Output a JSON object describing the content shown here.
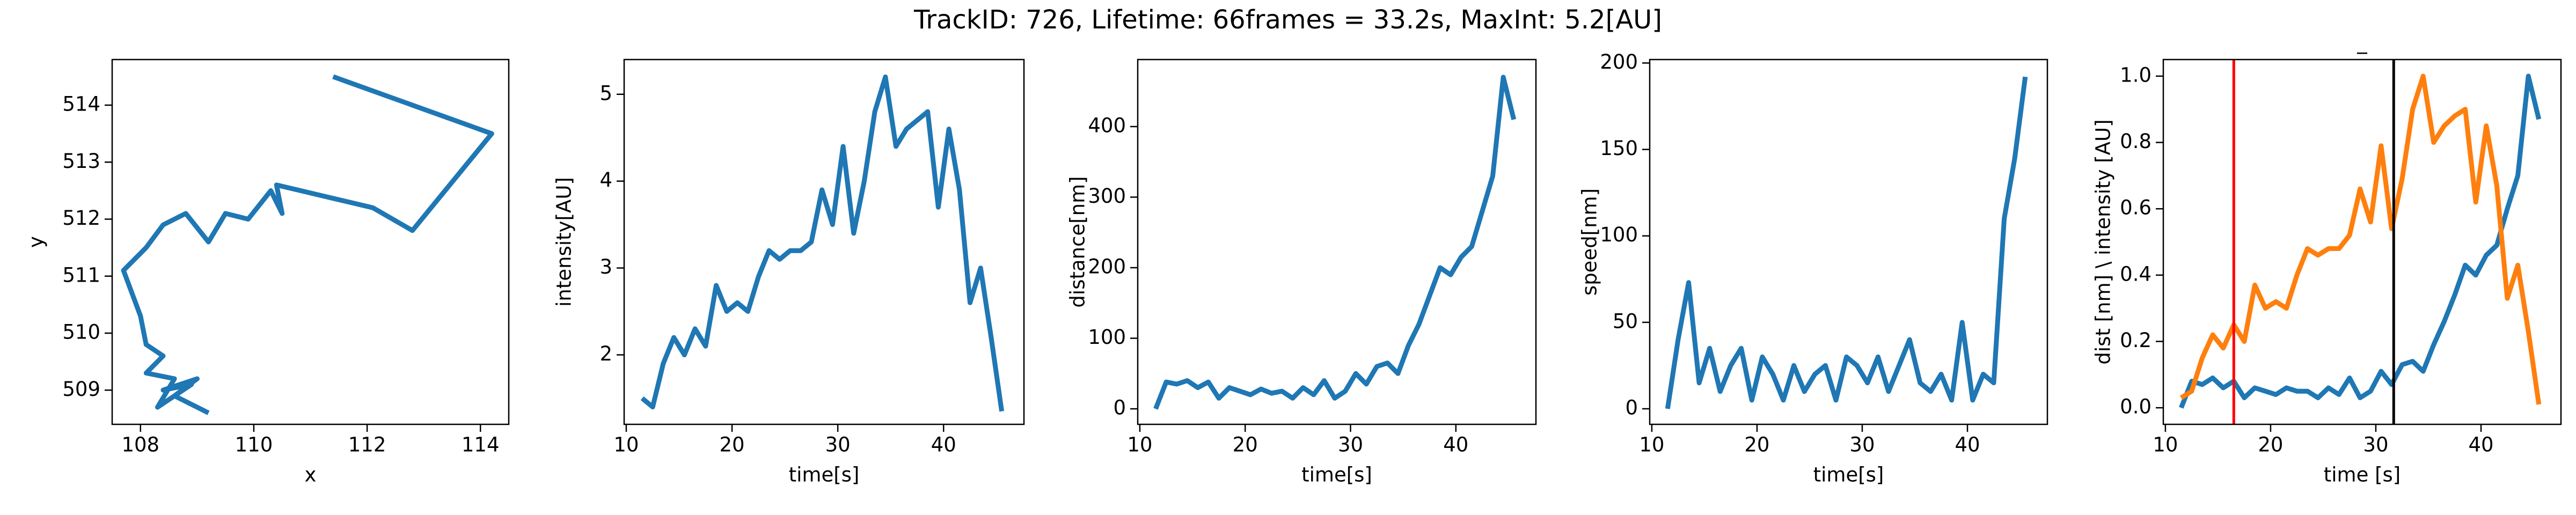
{
  "title": "TrackID: 726, Lifetime: 66frames = 33.2s, MaxInt: 5.2[AU]",
  "chart_data": [
    {
      "type": "line",
      "xlabel": "x",
      "ylabel": "y",
      "color": "#1f77b4",
      "x": [
        111.4,
        114.2,
        112.8,
        112.1,
        110.4,
        110.5,
        110.3,
        109.9,
        109.5,
        109.2,
        108.8,
        108.4,
        108.1,
        108.1,
        107.7,
        108.0,
        108.1,
        108.4,
        108.1,
        108.6,
        108.3,
        108.9,
        108.4,
        109.0,
        108.6,
        109.2
      ],
      "values": [
        514.5,
        513.5,
        511.8,
        512.2,
        512.6,
        512.1,
        512.5,
        512.0,
        512.1,
        511.6,
        512.1,
        511.9,
        511.5,
        511.5,
        511.1,
        510.3,
        509.8,
        509.6,
        509.3,
        509.2,
        508.7,
        509.1,
        509.0,
        509.2,
        508.9,
        508.6
      ],
      "xlim": [
        107.5,
        114.5
      ],
      "ylim": [
        508.4,
        514.8
      ],
      "xticks": [
        108,
        110,
        112,
        114
      ],
      "yticks": [
        509,
        510,
        511,
        512,
        513,
        514
      ]
    },
    {
      "type": "line",
      "xlabel": "time[s]",
      "ylabel": "intensity[AU]",
      "color": "#1f77b4",
      "x": [
        11.5,
        12.5,
        13.5,
        14.5,
        15.5,
        16.5,
        17.5,
        18.5,
        19.5,
        20.5,
        21.5,
        22.5,
        23.5,
        24.5,
        25.5,
        26.5,
        27.5,
        28.5,
        29.5,
        30.5,
        31.5,
        32.5,
        33.5,
        34.5,
        35.5,
        36.5,
        37.5,
        38.5,
        39.5,
        40.5,
        41.5,
        42.5,
        43.5,
        44.5,
        45.5
      ],
      "values": [
        1.5,
        1.4,
        1.9,
        2.2,
        2.0,
        2.3,
        2.1,
        2.8,
        2.5,
        2.6,
        2.5,
        2.9,
        3.2,
        3.1,
        3.2,
        3.2,
        3.3,
        3.9,
        3.5,
        4.4,
        3.4,
        4.0,
        4.8,
        5.2,
        4.4,
        4.6,
        4.7,
        4.8,
        3.7,
        4.6,
        3.9,
        2.6,
        3.0,
        2.2,
        1.35
      ],
      "xlim": [
        9.8,
        47.6
      ],
      "ylim": [
        1.2,
        5.4
      ],
      "xticks": [
        10,
        20,
        30,
        40
      ],
      "yticks": [
        2,
        3,
        4,
        5
      ]
    },
    {
      "type": "line",
      "xlabel": "time[s]",
      "ylabel": "distance[nm]",
      "color": "#1f77b4",
      "x": [
        11.5,
        12.5,
        13.5,
        14.5,
        15.5,
        16.5,
        17.5,
        18.5,
        19.5,
        20.5,
        21.5,
        22.5,
        23.5,
        24.5,
        25.5,
        26.5,
        27.5,
        28.5,
        29.5,
        30.5,
        31.5,
        32.5,
        33.5,
        34.5,
        35.5,
        36.5,
        37.5,
        38.5,
        39.5,
        40.5,
        41.5,
        42.5,
        43.5,
        44.5,
        45.5
      ],
      "values": [
        0,
        38,
        35,
        40,
        30,
        38,
        15,
        30,
        25,
        20,
        28,
        22,
        25,
        15,
        30,
        20,
        40,
        15,
        25,
        50,
        35,
        60,
        65,
        50,
        90,
        120,
        160,
        200,
        190,
        215,
        230,
        280,
        330,
        470,
        410
      ],
      "xlim": [
        9.8,
        47.6
      ],
      "ylim": [
        -22,
        495
      ],
      "xticks": [
        10,
        20,
        30,
        40
      ],
      "yticks": [
        0,
        100,
        200,
        300,
        400
      ]
    },
    {
      "type": "line",
      "xlabel": "time[s]",
      "ylabel": "speed[nm]",
      "color": "#1f77b4",
      "x": [
        11.5,
        12.5,
        13.5,
        14.5,
        15.5,
        16.5,
        17.5,
        18.5,
        19.5,
        20.5,
        21.5,
        22.5,
        23.5,
        24.5,
        25.5,
        26.5,
        27.5,
        28.5,
        29.5,
        30.5,
        31.5,
        32.5,
        33.5,
        34.5,
        35.5,
        36.5,
        37.5,
        38.5,
        39.5,
        40.5,
        41.5,
        42.5,
        43.5,
        44.5,
        45.5
      ],
      "values": [
        0,
        40,
        73,
        15,
        35,
        10,
        25,
        35,
        5,
        30,
        20,
        5,
        25,
        10,
        20,
        25,
        5,
        30,
        25,
        15,
        30,
        10,
        25,
        40,
        15,
        10,
        20,
        5,
        50,
        5,
        20,
        15,
        110,
        145,
        192
      ],
      "xlim": [
        9.8,
        47.6
      ],
      "ylim": [
        -9,
        202
      ],
      "xticks": [
        10,
        20,
        30,
        40
      ],
      "yticks": [
        0,
        50,
        100,
        150,
        200
      ]
    },
    {
      "type": "line",
      "title": "_",
      "xlabel": "time [s]",
      "ylabel": "dist [nm] \\ intensity [AU]",
      "x": [
        11.5,
        12.5,
        13.5,
        14.5,
        15.5,
        16.5,
        17.5,
        18.5,
        19.5,
        20.5,
        21.5,
        22.5,
        23.5,
        24.5,
        25.5,
        26.5,
        27.5,
        28.5,
        29.5,
        30.5,
        31.5,
        32.5,
        33.5,
        34.5,
        35.5,
        36.5,
        37.5,
        38.5,
        39.5,
        40.5,
        41.5,
        42.5,
        43.5,
        44.5,
        45.5
      ],
      "series": [
        {
          "color": "#1f77b4",
          "values": [
            0.0,
            0.08,
            0.07,
            0.09,
            0.06,
            0.08,
            0.03,
            0.06,
            0.05,
            0.04,
            0.06,
            0.05,
            0.05,
            0.03,
            0.06,
            0.04,
            0.09,
            0.03,
            0.05,
            0.11,
            0.07,
            0.13,
            0.14,
            0.11,
            0.19,
            0.26,
            0.34,
            0.43,
            0.4,
            0.46,
            0.49,
            0.6,
            0.7,
            1.0,
            0.87
          ]
        },
        {
          "color": "#ff7f0e",
          "values": [
            0.03,
            0.05,
            0.15,
            0.22,
            0.18,
            0.25,
            0.2,
            0.37,
            0.3,
            0.32,
            0.3,
            0.4,
            0.48,
            0.46,
            0.48,
            0.48,
            0.52,
            0.66,
            0.56,
            0.79,
            0.54,
            0.69,
            0.9,
            1.0,
            0.8,
            0.85,
            0.88,
            0.9,
            0.62,
            0.85,
            0.67,
            0.33,
            0.43,
            0.23,
            0.01
          ]
        }
      ],
      "vlines": [
        {
          "x": 16.5,
          "color": "#ff0000"
        },
        {
          "x": 31.7,
          "color": "#000000"
        }
      ],
      "xlim": [
        9.8,
        47.6
      ],
      "ylim": [
        -0.05,
        1.05
      ],
      "xticks": [
        10,
        20,
        30,
        40
      ],
      "yticks": [
        {
          "value": 0,
          "label": "0.0"
        },
        {
          "value": 0.2,
          "label": "0.2"
        },
        {
          "value": 0.4,
          "label": "0.4"
        },
        {
          "value": 0.6,
          "label": "0.6"
        },
        {
          "value": 0.8,
          "label": "0.8"
        },
        {
          "value": 1,
          "label": "1.0"
        }
      ]
    }
  ]
}
